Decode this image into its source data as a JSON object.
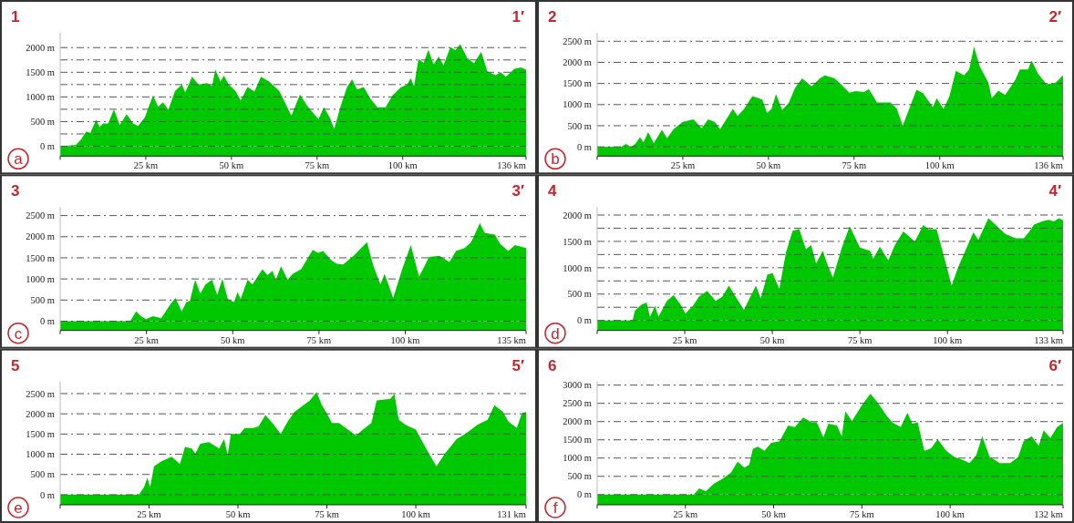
{
  "chart_data": [
    {
      "type": "area",
      "annotations": [
        "1",
        "1′",
        "a"
      ],
      "color": "#00c800",
      "grid": "y",
      "xlim": [
        0,
        136
      ],
      "xticks": [
        {
          "value": 25,
          "label": "25 km"
        },
        {
          "value": 50,
          "label": "50 km"
        },
        {
          "value": 75,
          "label": "75 km"
        },
        {
          "value": 100,
          "label": "100 km"
        },
        {
          "value": 136,
          "label": "136 km"
        }
      ],
      "ylim": [
        -200,
        2300
      ],
      "yticks": [
        {
          "value": 0,
          "label": "0 m"
        },
        {
          "value": 250,
          "label": null
        },
        {
          "value": 500,
          "label": "500 m"
        },
        {
          "value": 750,
          "label": null
        },
        {
          "value": 1000,
          "label": "1000 m"
        },
        {
          "value": 1250,
          "label": null
        },
        {
          "value": 1500,
          "label": "1500 m"
        },
        {
          "value": 1750,
          "label": null
        },
        {
          "value": 2000,
          "label": "2000 m"
        }
      ],
      "x": [
        0,
        4.6,
        6.1,
        7.6,
        8.8,
        10.5,
        11.5,
        12.5,
        14,
        15.7,
        17.4,
        19.4,
        21.3,
        22.7,
        24.7,
        25.7,
        27.1,
        28.6,
        30,
        31.6,
        33.5,
        35.5,
        36.5,
        38.5,
        40.4,
        42.9,
        44.3,
        45.3,
        46.8,
        47.8,
        49.2,
        51.2,
        52.7,
        54.7,
        56.7,
        58.6,
        61,
        64,
        67.5,
        70,
        72.3,
        73.8,
        75.4,
        77,
        78.8,
        80,
        81.8,
        83.7,
        85.2,
        86.7,
        88.6,
        90.6,
        92.6,
        95,
        97,
        99.4,
        101.3,
        102.3,
        103.3,
        104.6,
        106.1,
        107.5,
        109,
        110.5,
        111.9,
        113.9,
        115.4,
        116.8,
        118.8,
        120.8,
        122.9,
        124.7,
        127.1,
        128.6,
        130.1,
        132.6,
        134.5,
        136
      ],
      "values": [
        0,
        30,
        140,
        300,
        270,
        540,
        390,
        460,
        460,
        750,
        430,
        650,
        460,
        410,
        580,
        770,
        1030,
        800,
        890,
        740,
        1120,
        1250,
        1090,
        1410,
        1250,
        1280,
        1220,
        1550,
        1310,
        1430,
        1250,
        1120,
        930,
        1200,
        1110,
        1410,
        1310,
        1120,
        620,
        1050,
        800,
        680,
        550,
        790,
        570,
        350,
        800,
        1190,
        1360,
        1150,
        1200,
        960,
        790,
        790,
        1030,
        1190,
        1250,
        1380,
        1220,
        1770,
        1690,
        1960,
        1660,
        1820,
        1640,
        2010,
        1950,
        2070,
        1790,
        1680,
        1910,
        1520,
        1440,
        1500,
        1410,
        1570,
        1600,
        1550
      ]
    },
    {
      "type": "area",
      "annotations": [
        "2",
        "2′",
        "b"
      ],
      "color": "#00c800",
      "grid": "y",
      "xlim": [
        0,
        136
      ],
      "xticks": [
        {
          "value": 25,
          "label": "25 km"
        },
        {
          "value": 50,
          "label": "50 km"
        },
        {
          "value": 75,
          "label": "75 km"
        },
        {
          "value": 100,
          "label": "100 km"
        },
        {
          "value": 136,
          "label": "136 km"
        }
      ],
      "ylim": [
        -220,
        2700
      ],
      "yticks": [
        {
          "value": 0,
          "label": "0 m"
        },
        {
          "value": 500,
          "label": "500 m"
        },
        {
          "value": 1000,
          "label": "1000 m"
        },
        {
          "value": 1500,
          "label": "1500 m"
        },
        {
          "value": 2000,
          "label": "2000 m"
        },
        {
          "value": 2500,
          "label": "2500 m"
        }
      ],
      "x": [
        0,
        7,
        8.4,
        9.9,
        11.3,
        12.5,
        13.5,
        14.9,
        16.5,
        18.9,
        20.4,
        22.3,
        25,
        28.1,
        30.5,
        32.4,
        34.3,
        35.9,
        39.6,
        41,
        42.9,
        45.3,
        48.2,
        49.6,
        50.9,
        52.2,
        54,
        55.9,
        57.8,
        59.8,
        62.6,
        65,
        66.5,
        69.3,
        71.2,
        73.6,
        75.5,
        77.9,
        79.3,
        81.7,
        85.6,
        87.5,
        89.2,
        90.8,
        93.2,
        95.1,
        98,
        99.1,
        101.1,
        102.8,
        104.7,
        107.1,
        108.6,
        110,
        111.7,
        114.2,
        115.2,
        117.1,
        119.1,
        122,
        123.4,
        125.8,
        126.8,
        128.7,
        131.2,
        133.8,
        136
      ],
      "values": [
        0,
        0,
        65,
        0,
        85,
        230,
        105,
        350,
        85,
        400,
        200,
        420,
        590,
        650,
        440,
        650,
        590,
        420,
        900,
        730,
        900,
        1200,
        1120,
        800,
        900,
        1250,
        870,
        1040,
        1400,
        1620,
        1430,
        1620,
        1690,
        1620,
        1480,
        1280,
        1320,
        1300,
        1370,
        1050,
        1050,
        900,
        500,
        840,
        1350,
        1270,
        940,
        1150,
        900,
        1190,
        1800,
        1690,
        1830,
        2370,
        1900,
        1520,
        1150,
        1330,
        1230,
        1580,
        1830,
        1830,
        2050,
        1730,
        1480,
        1520,
        1690
      ]
    },
    {
      "type": "area",
      "annotations": [
        "3",
        "3′",
        "c"
      ],
      "color": "#00c800",
      "grid": "y",
      "xlim": [
        0,
        135
      ],
      "xticks": [
        {
          "value": 25,
          "label": "25 km"
        },
        {
          "value": 50,
          "label": "50 km"
        },
        {
          "value": 75,
          "label": "75 km"
        },
        {
          "value": 100,
          "label": "100 km"
        },
        {
          "value": 135,
          "label": "135 km"
        }
      ],
      "ylim": [
        -220,
        2700
      ],
      "yticks": [
        {
          "value": 0,
          "label": "0 m"
        },
        {
          "value": 500,
          "label": "500 m"
        },
        {
          "value": 1000,
          "label": "1000 m"
        },
        {
          "value": 1500,
          "label": "1500 m"
        },
        {
          "value": 2000,
          "label": "2000 m"
        },
        {
          "value": 2500,
          "label": "2500 m"
        }
      ],
      "x": [
        0,
        20.3,
        22,
        23.4,
        24.9,
        26.9,
        29.3,
        31.7,
        33.4,
        35.2,
        36.6,
        37.6,
        39.1,
        40.6,
        42.1,
        44,
        45.5,
        47,
        48.6,
        50.4,
        51.4,
        52.3,
        54.3,
        55.7,
        58.6,
        60.1,
        61.5,
        62.5,
        64,
        65.9,
        67.4,
        69.8,
        73.2,
        74.7,
        76.2,
        78.6,
        80.1,
        82,
        85,
        88.9,
        90.8,
        92.8,
        94,
        96.5,
        99.1,
        101.6,
        104,
        106.9,
        109.9,
        112.8,
        114.7,
        117.2,
        119.1,
        121.6,
        123,
        126,
        127.4,
        129.8,
        131.8,
        135
      ],
      "values": [
        0,
        0,
        230,
        120,
        50,
        120,
        70,
        370,
        550,
        230,
        450,
        480,
        980,
        650,
        870,
        980,
        620,
        1000,
        520,
        450,
        690,
        520,
        980,
        870,
        1230,
        1090,
        1190,
        980,
        1300,
        980,
        1120,
        1230,
        1690,
        1620,
        1660,
        1440,
        1360,
        1340,
        1550,
        1870,
        1300,
        870,
        1120,
        550,
        1230,
        1800,
        1050,
        1520,
        1550,
        1400,
        1660,
        1730,
        1870,
        2320,
        2090,
        2050,
        1840,
        1660,
        1800,
        1730
      ]
    },
    {
      "type": "area",
      "annotations": [
        "4",
        "4′",
        "d"
      ],
      "color": "#00c800",
      "grid": "y",
      "xlim": [
        0,
        133
      ],
      "xticks": [
        {
          "value": 25,
          "label": "25 km"
        },
        {
          "value": 50,
          "label": "50 km"
        },
        {
          "value": 75,
          "label": "75 km"
        },
        {
          "value": 100,
          "label": "100 km"
        },
        {
          "value": 133,
          "label": "133 km"
        }
      ],
      "ylim": [
        -190,
        2150
      ],
      "yticks": [
        {
          "value": 0,
          "label": "0 m"
        },
        {
          "value": 250,
          "label": null
        },
        {
          "value": 500,
          "label": "500 m"
        },
        {
          "value": 750,
          "label": null
        },
        {
          "value": 1000,
          "label": "1000 m"
        },
        {
          "value": 1250,
          "label": null
        },
        {
          "value": 1500,
          "label": "1500 m"
        },
        {
          "value": 1750,
          "label": null
        },
        {
          "value": 2000,
          "label": "2000 m"
        }
      ],
      "x": [
        0,
        10.1,
        10.8,
        12.7,
        14.1,
        15.1,
        16.5,
        17.5,
        19.9,
        21.8,
        23.8,
        25.2,
        27.6,
        29,
        31.4,
        33.8,
        35.7,
        37.6,
        40,
        41.9,
        45.3,
        46.7,
        48.6,
        50.1,
        52,
        53.9,
        55.8,
        57.7,
        59.6,
        61.1,
        62.5,
        64.4,
        65.8,
        67.3,
        69.7,
        72.1,
        75,
        77.9,
        78.8,
        80.7,
        83.1,
        85,
        87.4,
        90.7,
        93.1,
        94.5,
        96.9,
        99.3,
        101.2,
        103.1,
        107.4,
        108.8,
        111.7,
        112.7,
        116.5,
        119.4,
        121.8,
        123.2,
        124.7,
        127,
        128.9,
        130.4,
        131.8,
        133
      ],
      "values": [
        0,
        0,
        190,
        300,
        340,
        70,
        280,
        70,
        370,
        480,
        300,
        130,
        300,
        450,
        560,
        370,
        450,
        660,
        400,
        200,
        660,
        420,
        870,
        900,
        600,
        1290,
        1700,
        1730,
        1350,
        1430,
        1080,
        1320,
        1050,
        810,
        1350,
        1790,
        1380,
        1320,
        1170,
        1400,
        1140,
        1430,
        1690,
        1500,
        1810,
        1730,
        1730,
        1140,
        660,
        1020,
        1670,
        1530,
        1940,
        1880,
        1640,
        1560,
        1560,
        1670,
        1820,
        1880,
        1910,
        1880,
        1940,
        1900
      ]
    },
    {
      "type": "area",
      "annotations": [
        "5",
        "5′",
        "e"
      ],
      "color": "#00c800",
      "grid": "y",
      "xlim": [
        0,
        131
      ],
      "xticks": [
        {
          "value": 25,
          "label": "25 km"
        },
        {
          "value": 50,
          "label": "50 km"
        },
        {
          "value": 75,
          "label": "75 km"
        },
        {
          "value": 100,
          "label": "100 km"
        },
        {
          "value": 131,
          "label": "131 km"
        }
      ],
      "ylim": [
        -250,
        2800
      ],
      "yticks": [
        {
          "value": 0,
          "label": "0 m"
        },
        {
          "value": 500,
          "label": "500 m"
        },
        {
          "value": 1000,
          "label": "1000 m"
        },
        {
          "value": 1500,
          "label": "1500 m"
        },
        {
          "value": 2000,
          "label": "2000 m"
        },
        {
          "value": 2500,
          "label": "2500 m"
        }
      ],
      "x": [
        0,
        22.1,
        23.6,
        24.5,
        25.3,
        26.4,
        28.4,
        31.3,
        33.7,
        35.1,
        37,
        38,
        39.4,
        41.8,
        44.7,
        46.1,
        47.1,
        48,
        50.5,
        51.9,
        54.3,
        55.8,
        57.7,
        60.1,
        62,
        64,
        65.9,
        67.8,
        70.2,
        72.1,
        73.6,
        75,
        76.4,
        78.4,
        80.3,
        83.2,
        85.1,
        87.5,
        89,
        92.8,
        94,
        95.2,
        97.1,
        100,
        102.9,
        105.8,
        108.2,
        111.5,
        113.9,
        117.3,
        120.2,
        122.1,
        124.5,
        126,
        128.4,
        129.8,
        131
      ],
      "values": [
        0,
        0,
        190,
        420,
        190,
        700,
        820,
        940,
        760,
        1180,
        1140,
        1020,
        1260,
        1300,
        1140,
        1380,
        980,
        1500,
        1500,
        1650,
        1650,
        1690,
        1970,
        1730,
        1500,
        1810,
        2050,
        2170,
        2330,
        2540,
        2210,
        2010,
        1770,
        1770,
        1650,
        1460,
        1610,
        1770,
        2330,
        2370,
        2490,
        1850,
        1730,
        1610,
        1140,
        700,
        1020,
        1380,
        1500,
        1730,
        1850,
        2210,
        2050,
        1810,
        1650,
        2010,
        2050
      ]
    },
    {
      "type": "area",
      "annotations": [
        "6",
        "6′",
        "f"
      ],
      "color": "#00c800",
      "grid": "y",
      "xlim": [
        0,
        132
      ],
      "xticks": [
        {
          "value": 25,
          "label": "25 km"
        },
        {
          "value": 50,
          "label": "50 km"
        },
        {
          "value": 75,
          "label": "75 km"
        },
        {
          "value": 100,
          "label": "100 km"
        },
        {
          "value": 132,
          "label": "132 km"
        }
      ],
      "ylim": [
        -280,
        3100
      ],
      "yticks": [
        {
          "value": 0,
          "label": "0 m"
        },
        {
          "value": 500,
          "label": "500 m"
        },
        {
          "value": 1000,
          "label": "1000 m"
        },
        {
          "value": 1500,
          "label": "1500 m"
        },
        {
          "value": 2000,
          "label": "2000 m"
        },
        {
          "value": 2500,
          "label": "2500 m"
        },
        {
          "value": 3000,
          "label": "3000 m"
        }
      ],
      "x": [
        0,
        27.4,
        28.9,
        30.8,
        33.1,
        35.5,
        37.9,
        39.8,
        41.7,
        43.1,
        44.1,
        45.5,
        47.4,
        49.3,
        51.7,
        54.1,
        56,
        58.4,
        60.7,
        62.2,
        64.1,
        65.5,
        67.9,
        69.3,
        70.3,
        72.2,
        75,
        77.4,
        79.3,
        82.1,
        83.6,
        86,
        87.9,
        89.3,
        90.8,
        92.7,
        94.6,
        96.5,
        98.9,
        101.2,
        103.6,
        105.5,
        107.4,
        109.1,
        111.2,
        114.1,
        117,
        119.3,
        120.8,
        123.1,
        125.1,
        126.5,
        128.4,
        130.3,
        132
      ],
      "values": [
        0,
        0,
        170,
        90,
        300,
        430,
        600,
        900,
        740,
        820,
        1250,
        1310,
        1200,
        1420,
        1460,
        1890,
        1850,
        2110,
        1980,
        1980,
        1570,
        1940,
        1890,
        1600,
        2280,
        2020,
        2450,
        2760,
        2540,
        2150,
        1980,
        1850,
        2240,
        1940,
        1980,
        1200,
        1270,
        1510,
        1200,
        1030,
        950,
        860,
        1080,
        1600,
        1030,
        860,
        860,
        1030,
        1460,
        1600,
        1330,
        1760,
        1550,
        1850,
        1960
      ]
    }
  ]
}
